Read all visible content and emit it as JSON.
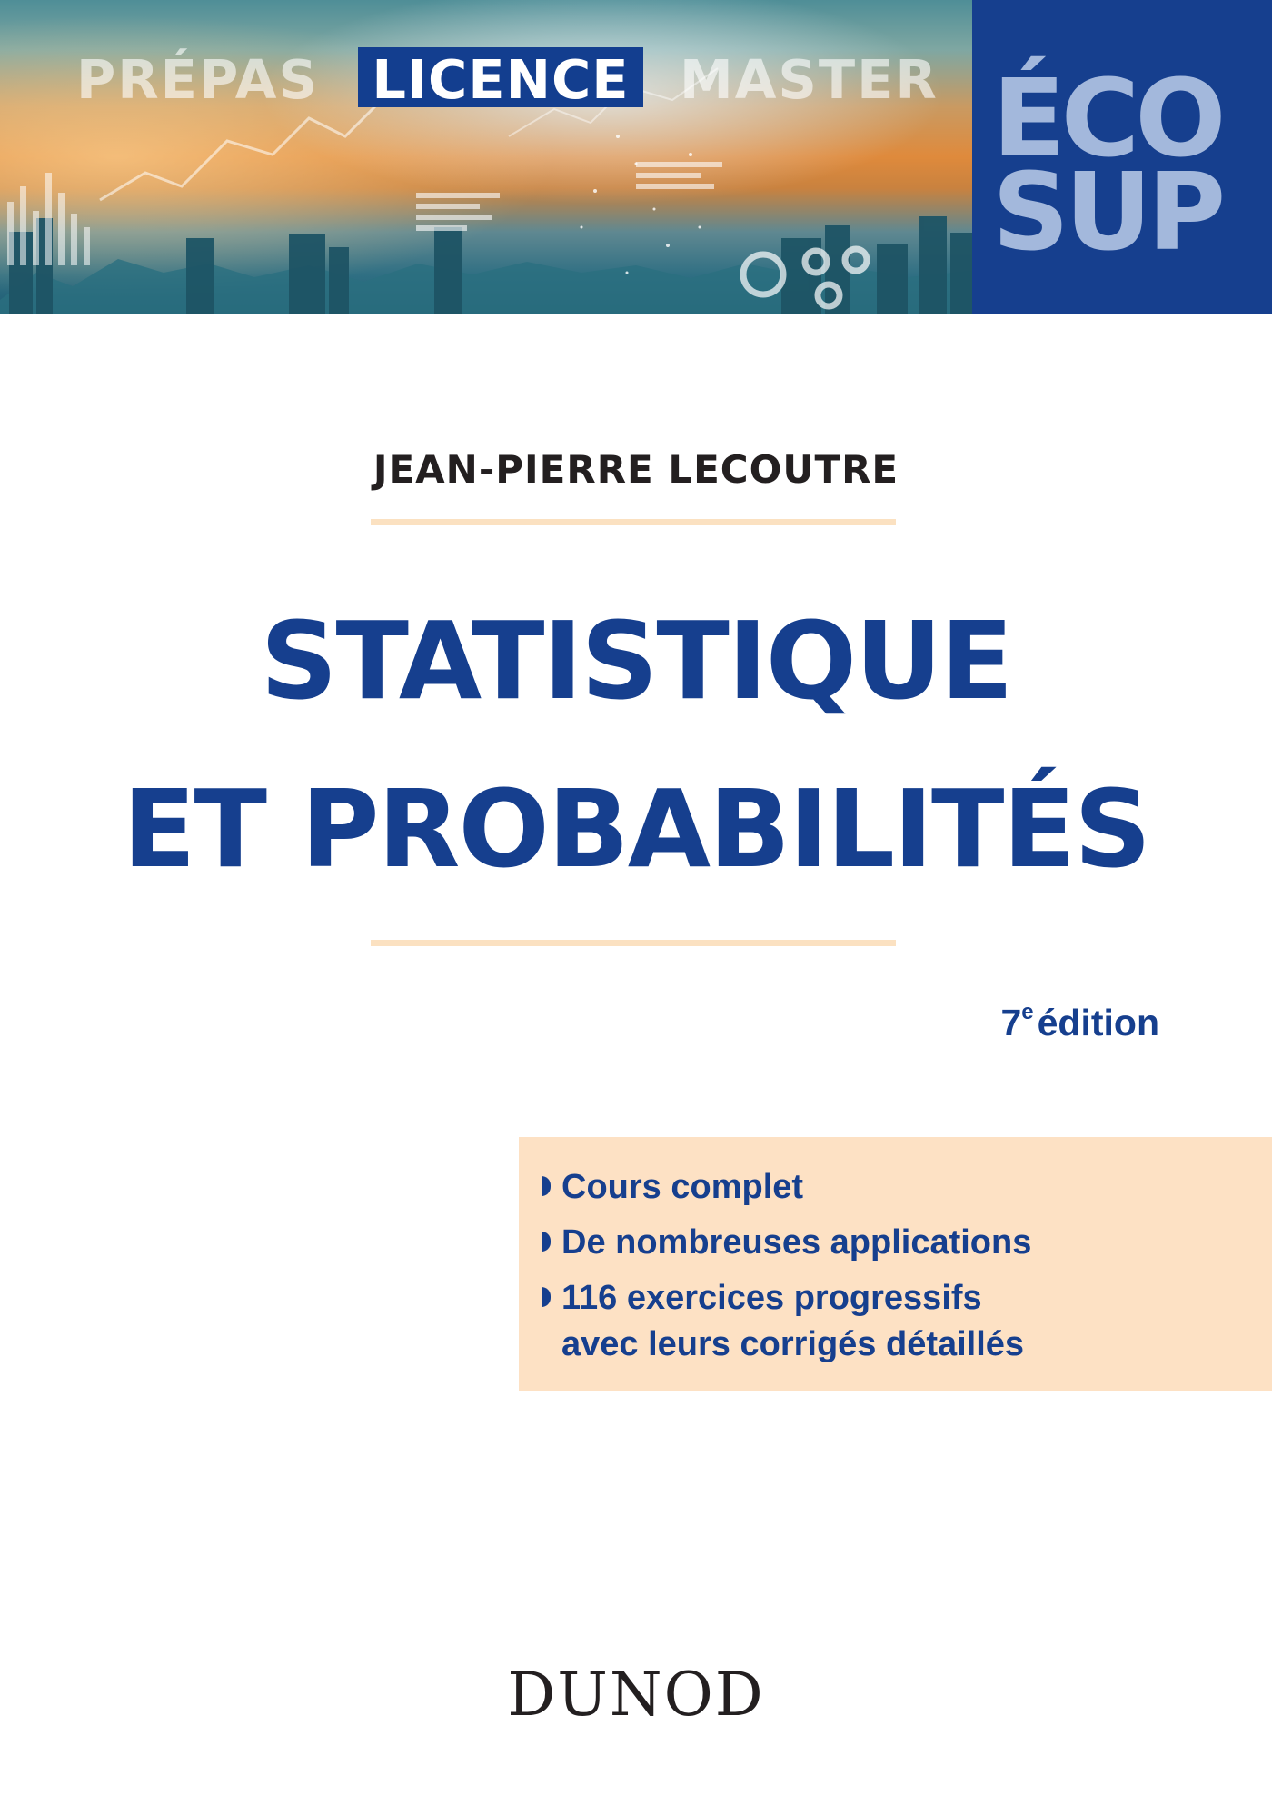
{
  "banner": {
    "levels": [
      "PRÉPAS",
      "LICENCE",
      "MASTER"
    ],
    "highlighted_level": "LICENCE",
    "highlight_color": "#133e8f"
  },
  "collection": {
    "line1": "ÉCO",
    "line2": "SUP",
    "background": "#163f8e",
    "text_color": "#a3b8dc"
  },
  "author": "JEAN-PIERRE LECOUTRE",
  "title": {
    "line1": "STATISTIQUE",
    "line2": "ET PROBABILITÉS",
    "color": "#163f8e"
  },
  "edition": {
    "number": "7",
    "superscript": "e",
    "label": "édition"
  },
  "features": {
    "items": [
      "Cours complet",
      "De nombreuses applications",
      "116 exercices progressifs"
    ],
    "item3_continued": "avec leurs corrigés détaillés",
    "background": "#fde1c4"
  },
  "publisher": "DUNOD",
  "accent_rule_color": "#fbe1c1"
}
